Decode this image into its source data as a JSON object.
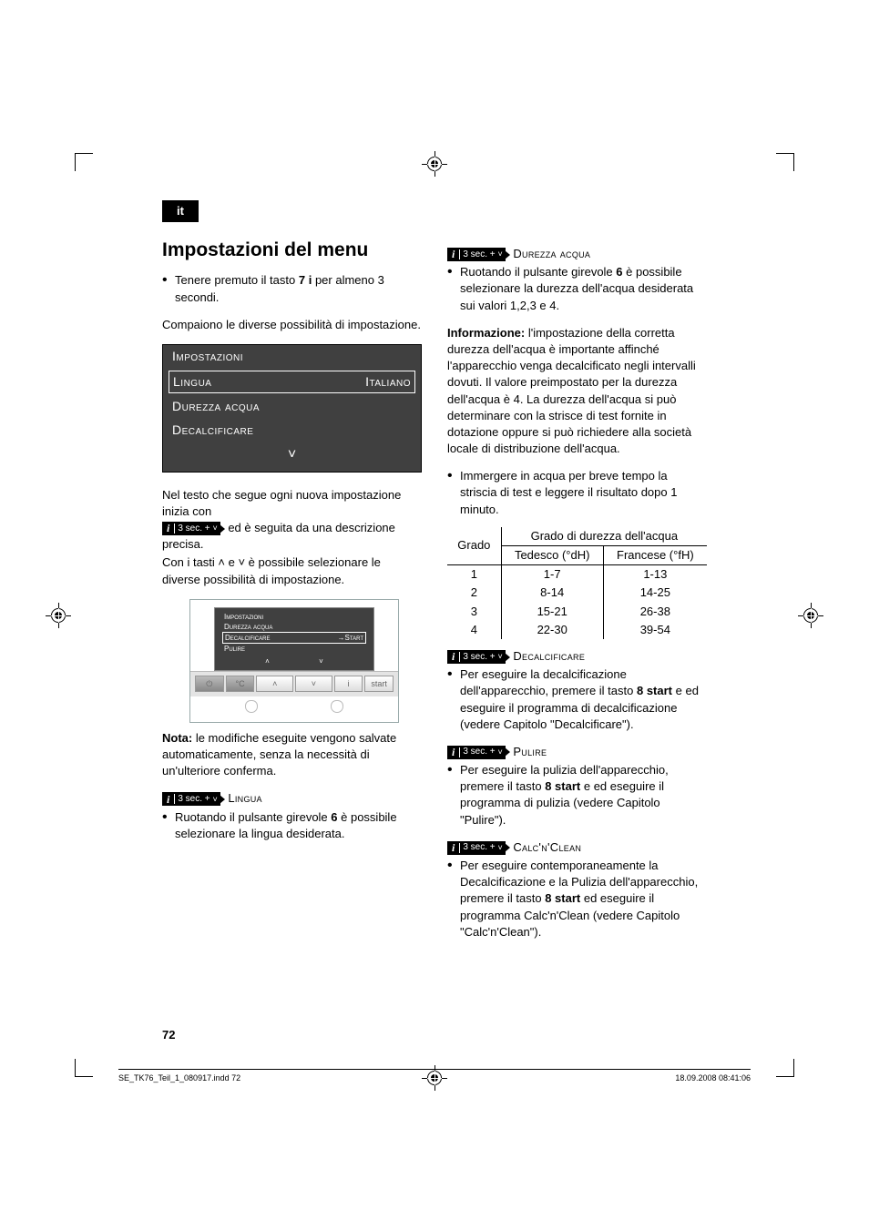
{
  "lang_tab": "it",
  "heading": "Impostazioni del menu",
  "intro_bullet": "Tenere premuto il tasto 7 i per almeno 3 secondi.",
  "intro_para": "Compaiono le diverse possibilità di impostazione.",
  "display": {
    "title": "Impostazioni",
    "sel_left": "Lingua",
    "sel_right": "Italiano",
    "row2": "Durezza acqua",
    "row3": "Decalcificare",
    "arrow": "˅"
  },
  "para2a": "Nel testo che segue ogni nuova impostazione inizia con",
  "pill_label": "3 sec. +",
  "para2b": " ed è seguita da una descrizione precisa.",
  "para3": "Con i tasti ˄ e ˅ è possibile selezionare le diverse possibilità di impostazione.",
  "mini_display": {
    "r1": "Impostazioni",
    "r2": "Durezza acqua",
    "r3l": "Decalcificare",
    "r3r": "→Start",
    "r4": "Pulire"
  },
  "panel_btns": {
    "power": "⏻",
    "temp": "°C",
    "up": "˄",
    "down": "˅",
    "info": "i",
    "start": "start"
  },
  "note_label": "Nota:",
  "note_text": "  le modifiche eseguite vengono salvate automaticamente, senza la necessità di un'ulteriore conferma.",
  "lingua": {
    "title": "Lingua",
    "bullet": "Ruotando il pulsante girevole 6 è possibile selezionare la lingua desiderata."
  },
  "durezza": {
    "title": "Durezza acqua",
    "bullet": "Ruotando il pulsante girevole 6 è possibile selezionare la durezza dell'acqua desiderata sui valori 1,2,3 e 4.",
    "info_label": "Informazione:",
    "info_text": " l'impostazione della corretta durezza dell'acqua è importante affinché l'apparecchio venga decalcificato negli intervalli dovuti. Il valore preimpostato per la durezza dell'acqua è 4. La durezza dell'acqua si può determinare con la strisce di test fornite in dotazione oppure si può richiedere alla società locale di distribuzione dell'acqua.",
    "bullet2": "Immergere in acqua per breve tempo la striscia di test e leggere il risultato dopo 1 minuto."
  },
  "table": {
    "h_grado": "Grado",
    "h_span": "Grado di durezza dell'acqua",
    "h_de": "Tedesco (°dH)",
    "h_fr": "Francese (°fH)",
    "rows": [
      {
        "g": "1",
        "de": "1-7",
        "fr": "1-13"
      },
      {
        "g": "2",
        "de": "8-14",
        "fr": "14-25"
      },
      {
        "g": "3",
        "de": "15-21",
        "fr": "26-38"
      },
      {
        "g": "4",
        "de": "22-30",
        "fr": "39-54"
      }
    ]
  },
  "decalc": {
    "title": "Decalcificare",
    "bullet": "Per eseguire la decalcificazione dell'apparecchio, premere il tasto 8 start e ed eseguire il programma di decalcificazione (vedere Capitolo \"Decalcificare\")."
  },
  "pulire": {
    "title": "Pulire",
    "bullet": "Per eseguire la pulizia dell'apparecchio, premere il tasto 8 start e ed eseguire il programma di pulizia (vedere Capitolo \"Pulire\")."
  },
  "calc": {
    "title": "Calc'n'Clean",
    "bullet": "Per eseguire contemporaneamente la Decalcificazione e la Pulizia dell'apparecchio, premere il tasto 8 start ed eseguire il programma Calc'n'Clean (vedere Capitolo \"Calc'n'Clean\")."
  },
  "page_num": "72",
  "footer_left": "SE_TK76_Teil_1_080917.indd   72",
  "footer_right": "18.09.2008   08:41:06"
}
